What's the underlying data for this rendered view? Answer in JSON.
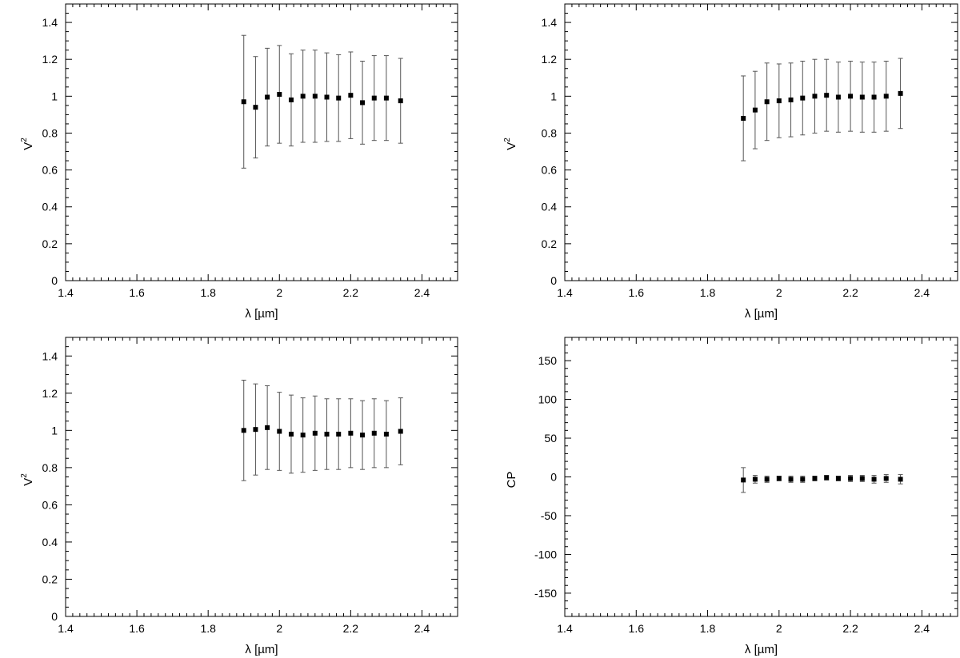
{
  "chart_data": [
    {
      "type": "scatter",
      "title": "",
      "xlabel": "λ [µm]",
      "ylabel": "V",
      "ylabel_superscript": "2",
      "xlim": [
        1.4,
        2.5
      ],
      "ylim": [
        0,
        1.5
      ],
      "xticks": [
        "1.4",
        "1.6",
        "1.8",
        "2",
        "2.2",
        "2.4"
      ],
      "yticks": [
        "0",
        "0.2",
        "0.4",
        "0.6",
        "0.8",
        "1",
        "1.2",
        "1.4"
      ],
      "xtick_values": [
        1.4,
        1.6,
        1.8,
        2.0,
        2.2,
        2.4
      ],
      "ytick_values": [
        0,
        0.2,
        0.4,
        0.6,
        0.8,
        1.0,
        1.2,
        1.4
      ],
      "grid": false,
      "series": [
        {
          "x": [
            1.9,
            1.933,
            1.966,
            2.0,
            2.033,
            2.066,
            2.1,
            2.133,
            2.166,
            2.2,
            2.233,
            2.266,
            2.3,
            2.34
          ],
          "y": [
            0.97,
            0.94,
            0.995,
            1.01,
            0.98,
            1.0,
            1.0,
            0.995,
            0.99,
            1.005,
            0.965,
            0.99,
            0.99,
            0.975
          ],
          "yerr": [
            0.36,
            0.275,
            0.265,
            0.265,
            0.25,
            0.25,
            0.25,
            0.24,
            0.235,
            0.235,
            0.225,
            0.23,
            0.23,
            0.23
          ]
        }
      ]
    },
    {
      "type": "scatter",
      "title": "",
      "xlabel": "λ [µm]",
      "ylabel": "V",
      "ylabel_superscript": "2",
      "xlim": [
        1.4,
        2.5
      ],
      "ylim": [
        0,
        1.5
      ],
      "xticks": [
        "1.4",
        "1.6",
        "1.8",
        "2",
        "2.2",
        "2.4"
      ],
      "yticks": [
        "0",
        "0.2",
        "0.4",
        "0.6",
        "0.8",
        "1",
        "1.2",
        "1.4"
      ],
      "xtick_values": [
        1.4,
        1.6,
        1.8,
        2.0,
        2.2,
        2.4
      ],
      "ytick_values": [
        0,
        0.2,
        0.4,
        0.6,
        0.8,
        1.0,
        1.2,
        1.4
      ],
      "grid": false,
      "series": [
        {
          "x": [
            1.9,
            1.933,
            1.966,
            2.0,
            2.033,
            2.066,
            2.1,
            2.133,
            2.166,
            2.2,
            2.233,
            2.266,
            2.3,
            2.34
          ],
          "y": [
            0.88,
            0.925,
            0.97,
            0.975,
            0.98,
            0.99,
            1.0,
            1.005,
            0.995,
            1.0,
            0.995,
            0.995,
            1.0,
            1.015
          ],
          "yerr": [
            0.23,
            0.21,
            0.21,
            0.2,
            0.2,
            0.2,
            0.2,
            0.195,
            0.19,
            0.19,
            0.19,
            0.19,
            0.19,
            0.19
          ]
        }
      ]
    },
    {
      "type": "scatter",
      "title": "",
      "xlabel": "λ [µm]",
      "ylabel": "V",
      "ylabel_superscript": "2",
      "xlim": [
        1.4,
        2.5
      ],
      "ylim": [
        0,
        1.5
      ],
      "xticks": [
        "1.4",
        "1.6",
        "1.8",
        "2",
        "2.2",
        "2.4"
      ],
      "yticks": [
        "0",
        "0.2",
        "0.4",
        "0.6",
        "0.8",
        "1",
        "1.2",
        "1.4"
      ],
      "xtick_values": [
        1.4,
        1.6,
        1.8,
        2.0,
        2.2,
        2.4
      ],
      "ytick_values": [
        0,
        0.2,
        0.4,
        0.6,
        0.8,
        1.0,
        1.2,
        1.4
      ],
      "grid": false,
      "series": [
        {
          "x": [
            1.9,
            1.933,
            1.966,
            2.0,
            2.033,
            2.066,
            2.1,
            2.133,
            2.166,
            2.2,
            2.233,
            2.266,
            2.3,
            2.34
          ],
          "y": [
            1.0,
            1.005,
            1.015,
            0.995,
            0.98,
            0.975,
            0.985,
            0.98,
            0.98,
            0.985,
            0.975,
            0.985,
            0.98,
            0.995
          ],
          "yerr": [
            0.27,
            0.245,
            0.225,
            0.21,
            0.21,
            0.2,
            0.2,
            0.19,
            0.19,
            0.185,
            0.185,
            0.185,
            0.18,
            0.18
          ]
        }
      ]
    },
    {
      "type": "scatter",
      "title": "",
      "xlabel": "λ [µm]",
      "ylabel": "CP",
      "ylabel_superscript": "",
      "xlim": [
        1.4,
        2.5
      ],
      "ylim": [
        -180,
        180
      ],
      "xticks": [
        "1.4",
        "1.6",
        "1.8",
        "2",
        "2.2",
        "2.4"
      ],
      "yticks": [
        "-150",
        "-100",
        "-50",
        "0",
        "50",
        "100",
        "150"
      ],
      "xtick_values": [
        1.4,
        1.6,
        1.8,
        2.0,
        2.2,
        2.4
      ],
      "ytick_values": [
        -150,
        -100,
        -50,
        0,
        50,
        100,
        150
      ],
      "grid": false,
      "series": [
        {
          "x": [
            1.9,
            1.933,
            1.966,
            2.0,
            2.033,
            2.066,
            2.1,
            2.133,
            2.166,
            2.2,
            2.233,
            2.266,
            2.3,
            2.34
          ],
          "y": [
            -4,
            -3,
            -3,
            -2,
            -3,
            -3,
            -2,
            -1,
            -2,
            -2,
            -2,
            -3,
            -2,
            -3
          ],
          "yerr": [
            16,
            5,
            4,
            3,
            4,
            4,
            3,
            3,
            3,
            4,
            4,
            5,
            5,
            6
          ]
        }
      ]
    }
  ]
}
